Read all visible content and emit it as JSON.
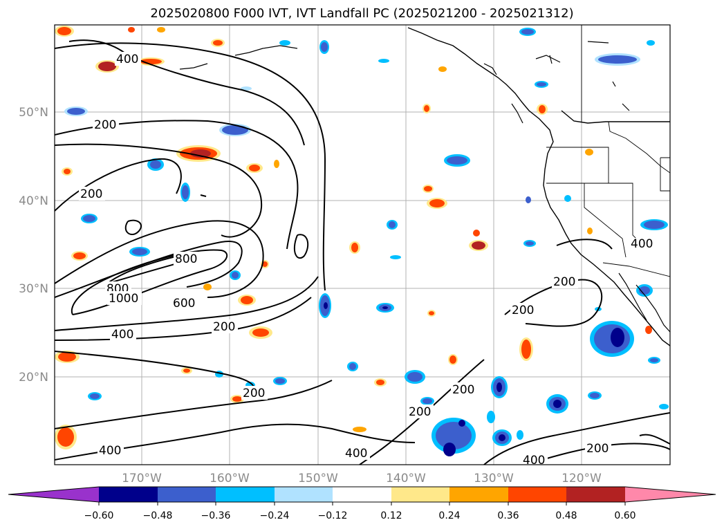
{
  "title": "2025020800 F000 IVT, IVT Landfall PC (2025021200 - 2025021312)",
  "map": {
    "lat_labels": [
      "50°N",
      "40°N",
      "30°N",
      "20°N"
    ],
    "lon_labels": [
      "170°W",
      "160°W",
      "150°W",
      "140°W",
      "130°W",
      "120°W"
    ],
    "contour_labels": [
      "400",
      "200",
      "200",
      "800",
      "800",
      "1000",
      "600",
      "200",
      "400",
      "200",
      "200",
      "200",
      "200",
      "200",
      "400",
      "400",
      "400",
      "400",
      "200"
    ]
  },
  "colorbar": {
    "ticks": [
      "−0.60",
      "−0.48",
      "−0.36",
      "−0.24",
      "−0.12",
      "0.12",
      "0.24",
      "0.36",
      "0.48",
      "0.60"
    ],
    "colors": [
      "#9932cc",
      "#00008b",
      "#3c5fcd",
      "#00bfff",
      "#b0e2ff",
      "#ffffff",
      "#ffe88a",
      "#ffa500",
      "#ff4500",
      "#b22222",
      "#ff88aa"
    ]
  }
}
